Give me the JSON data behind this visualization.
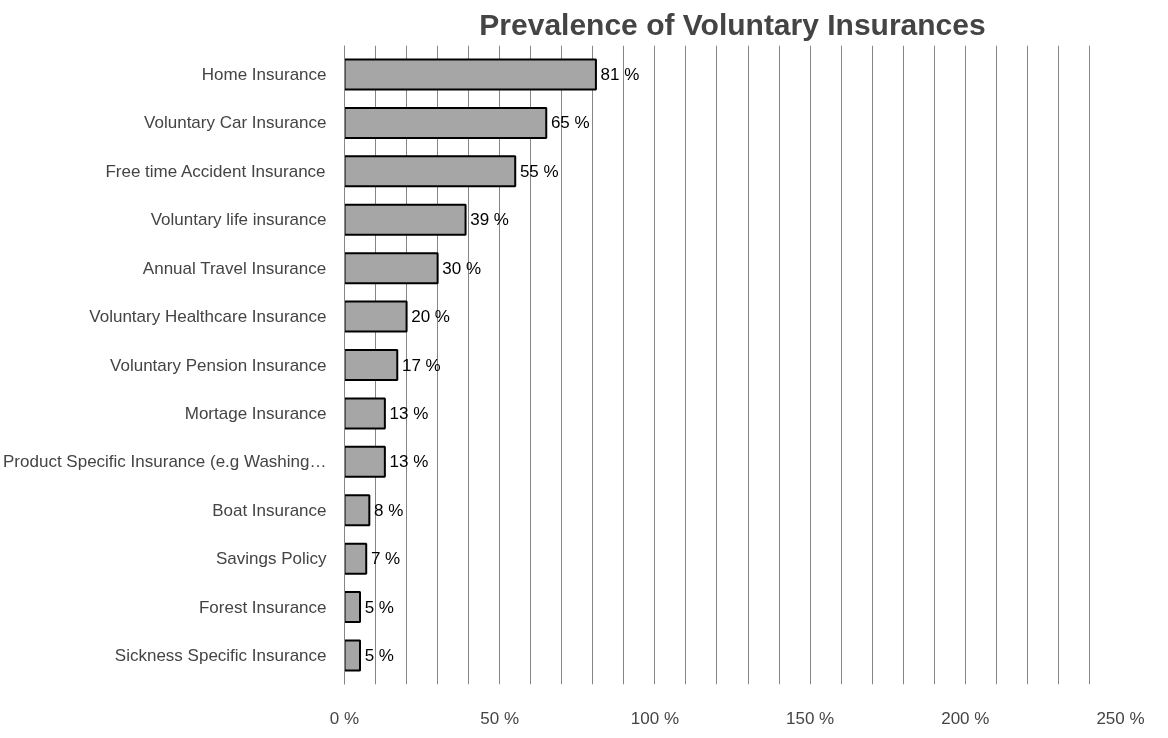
{
  "chart_data": {
    "type": "bar",
    "orientation": "horizontal",
    "title": "Prevalence of Voluntary Insurances",
    "categories": [
      "Home Insurance",
      "Voluntary Car Insurance",
      "Free time Accident Insurance",
      "Voluntary life insurance",
      "Annual Travel Insurance",
      "Voluntary Healthcare Insurance",
      "Voluntary Pension Insurance",
      "Mortage Insurance",
      "Product Specific Insurance (e.g Washing…",
      "Boat Insurance",
      "Savings Policy",
      "Forest Insurance",
      "Sickness Specific Insurance"
    ],
    "values": [
      81,
      65,
      55,
      39,
      30,
      20,
      17,
      13,
      13,
      8,
      7,
      5,
      5
    ],
    "value_labels": [
      "81 %",
      "65 %",
      "55 %",
      "39 %",
      "30 %",
      "20 %",
      "17 %",
      "13 %",
      "13 %",
      "8 %",
      "7 %",
      "5 %",
      "5 %"
    ],
    "color": "#a6a6a6",
    "xlim": [
      0,
      250
    ],
    "xticks": [
      {
        "value": 0,
        "label": "0 %"
      },
      {
        "value": 10,
        "label": null
      },
      {
        "value": 20,
        "label": null
      },
      {
        "value": 30,
        "label": null
      },
      {
        "value": 40,
        "label": null
      },
      {
        "value": 50,
        "label": "50 %"
      },
      {
        "value": 60,
        "label": null
      },
      {
        "value": 70,
        "label": null
      },
      {
        "value": 80,
        "label": null
      },
      {
        "value": 90,
        "label": null
      },
      {
        "value": 100,
        "label": "100 %"
      },
      {
        "value": 110,
        "label": null
      },
      {
        "value": 120,
        "label": null
      },
      {
        "value": 130,
        "label": null
      },
      {
        "value": 140,
        "label": null
      },
      {
        "value": 150,
        "label": "150 %"
      },
      {
        "value": 160,
        "label": null
      },
      {
        "value": 170,
        "label": null
      },
      {
        "value": 180,
        "label": null
      },
      {
        "value": 190,
        "label": null
      },
      {
        "value": 200,
        "label": "200 %"
      },
      {
        "value": 210,
        "label": null
      },
      {
        "value": 220,
        "label": null
      },
      {
        "value": 230,
        "label": null
      },
      {
        "value": 240,
        "label": null
      },
      {
        "value": 250,
        "label": "250 %"
      }
    ],
    "grid": "x"
  }
}
